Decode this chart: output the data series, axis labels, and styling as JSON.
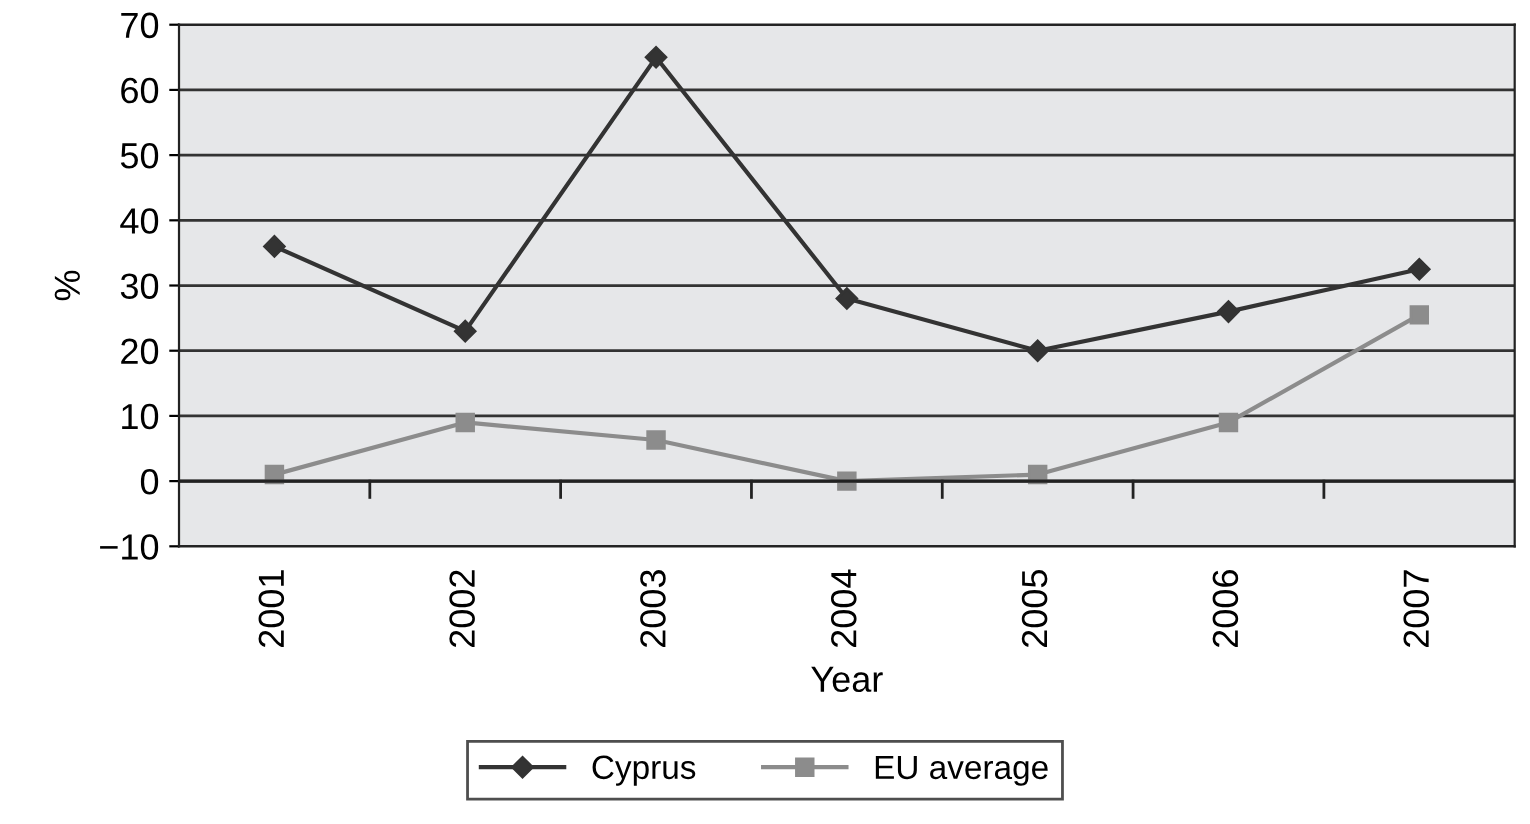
{
  "chart_data": {
    "type": "line",
    "xlabel": "Year",
    "ylabel": "%",
    "categories": [
      "2001",
      "2002",
      "2003",
      "2004",
      "2005",
      "2006",
      "2007"
    ],
    "series": [
      {
        "name": "Cyprus",
        "color": "#333333",
        "marker": "diamond",
        "values": [
          36,
          23,
          65,
          28,
          20,
          26,
          32.5
        ]
      },
      {
        "name": "EU average",
        "color": "#8c8c8c",
        "marker": "square",
        "values": [
          1,
          9,
          6.3,
          0,
          1,
          9,
          25.5
        ]
      }
    ],
    "ylim": [
      -10,
      70
    ],
    "yticks": [
      {
        "value": -10,
        "label": "−10"
      },
      0,
      10,
      20,
      30,
      40,
      50,
      60,
      70
    ],
    "grid": "y",
    "legend": "bottom"
  }
}
